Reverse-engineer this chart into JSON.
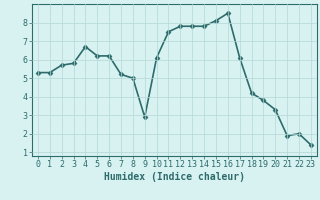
{
  "x": [
    0,
    1,
    2,
    3,
    4,
    5,
    6,
    7,
    8,
    9,
    10,
    11,
    12,
    13,
    14,
    15,
    16,
    17,
    18,
    19,
    20,
    21,
    22,
    23
  ],
  "y": [
    5.3,
    5.3,
    5.7,
    5.8,
    6.7,
    6.2,
    6.2,
    5.2,
    5.0,
    2.9,
    6.1,
    7.5,
    7.8,
    7.8,
    7.8,
    8.1,
    8.5,
    6.1,
    4.2,
    3.8,
    3.3,
    1.9,
    2.0,
    1.4
  ],
  "line_color": "#2e6b6b",
  "marker": "D",
  "marker_size": 2.5,
  "line_width": 1.2,
  "bg_color": "#d8f2f2",
  "grid_color": "#b5d8d8",
  "xlabel": "Humidex (Indice chaleur)",
  "xlabel_fontsize": 7,
  "xlabel_fontweight": "bold",
  "xlim": [
    -0.5,
    23.5
  ],
  "ylim": [
    0.8,
    9.0
  ],
  "yticks": [
    1,
    2,
    3,
    4,
    5,
    6,
    7,
    8
  ],
  "xticks": [
    0,
    1,
    2,
    3,
    4,
    5,
    6,
    7,
    8,
    9,
    10,
    11,
    12,
    13,
    14,
    15,
    16,
    17,
    18,
    19,
    20,
    21,
    22,
    23
  ],
  "tick_fontsize": 6,
  "font_family": "monospace"
}
